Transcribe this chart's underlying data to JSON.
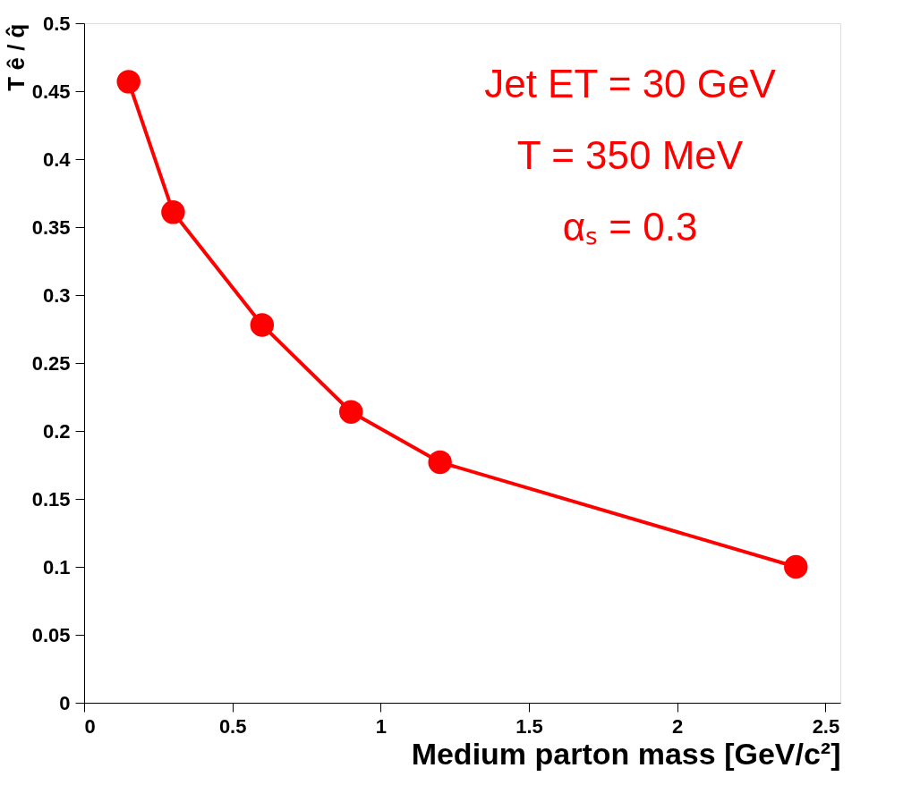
{
  "chart_data": {
    "type": "line",
    "xlabel": "Medium parton mass [GeV/c²]",
    "ylabel": "T ê / q̂",
    "x": [
      0.15,
      0.3,
      0.6,
      0.9,
      1.2,
      2.4
    ],
    "series": [
      {
        "color": "#ff0000",
        "values": [
          0.457,
          0.361,
          0.278,
          0.214,
          0.177,
          0.1
        ]
      }
    ],
    "xlim": [
      0,
      2.55
    ],
    "xticks": [
      0,
      0.5,
      1,
      1.5,
      2,
      2.5
    ],
    "ylim": [
      0,
      0.5
    ],
    "yticks": [
      0,
      0.05,
      0.1,
      0.15,
      0.2,
      0.25,
      0.3,
      0.35,
      0.4,
      0.45,
      0.5
    ],
    "marker": "circle",
    "line_style": "solid",
    "grid": false,
    "annotations": [
      "Jet ET = 30 GeV",
      "T = 350 MeV",
      "αₛ = 0.3"
    ]
  }
}
